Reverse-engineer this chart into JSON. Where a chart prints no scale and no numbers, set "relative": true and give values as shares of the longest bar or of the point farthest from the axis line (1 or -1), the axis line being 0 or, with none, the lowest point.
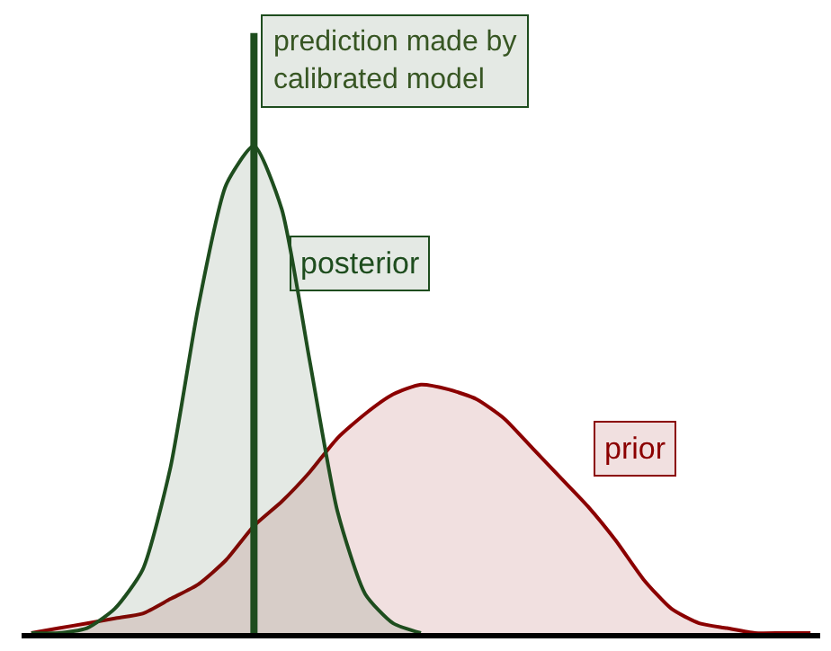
{
  "chart_data": {
    "type": "area",
    "relative": true,
    "legend": false,
    "categories": [
      null,
      null,
      null,
      null,
      null,
      null,
      null,
      null,
      null,
      null,
      null,
      null,
      null,
      null,
      null,
      null,
      null,
      null,
      null,
      null,
      null,
      null,
      null,
      null,
      null,
      null,
      null,
      null,
      null
    ],
    "series": [
      {
        "name": "posterior",
        "color": "#1e4d1e",
        "values": [
          0,
          0,
          0.01,
          0.05,
          0.13,
          0.34,
          0.67,
          0.92,
          1,
          0.87,
          0.56,
          0.25,
          0.08,
          0.02,
          0,
          null,
          null,
          null,
          null,
          null,
          null,
          null,
          null,
          null,
          null,
          null,
          null,
          null,
          null
        ]
      },
      {
        "name": "prior",
        "color": "#8b0000",
        "values": [
          0,
          0.01,
          0.02,
          0.03,
          0.04,
          0.07,
          0.1,
          0.15,
          0.22,
          0.27,
          0.33,
          0.4,
          0.45,
          0.49,
          0.51,
          0.5,
          0.48,
          0.44,
          0.38,
          0.32,
          0.26,
          0.19,
          0.11,
          0.05,
          0.02,
          0.01,
          0,
          0,
          0
        ]
      }
    ],
    "annotations": [
      "prediction made by calibrated model"
    ]
  }
}
